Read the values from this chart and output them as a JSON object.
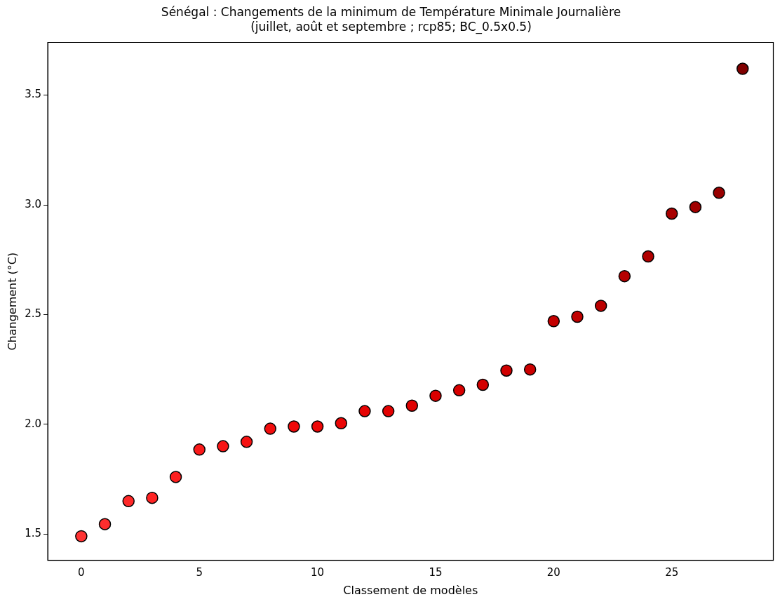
{
  "chart_data": {
    "type": "scatter",
    "title": [
      "Sénégal : Changements de la minimum de Température Minimale Journalière",
      "(juillet, août et septembre ; rcp85; BC_0.5x0.5)"
    ],
    "xlabel": "Classement de modèles",
    "ylabel": "Changement (°C)",
    "x": [
      0,
      1,
      2,
      3,
      4,
      5,
      6,
      7,
      8,
      9,
      10,
      11,
      12,
      13,
      14,
      15,
      16,
      17,
      18,
      19,
      20,
      21,
      22,
      23,
      24,
      25,
      26,
      27,
      28
    ],
    "values": [
      1.49,
      1.545,
      1.65,
      1.665,
      1.76,
      1.885,
      1.9,
      1.92,
      1.98,
      1.99,
      1.99,
      2.005,
      2.06,
      2.06,
      2.085,
      2.13,
      2.155,
      2.18,
      2.245,
      2.25,
      2.47,
      2.49,
      2.54,
      2.675,
      2.765,
      2.96,
      2.99,
      3.055,
      3.62
    ],
    "colors": [
      "#ff3333",
      "#ff2e2e",
      "#ff2929",
      "#ff2424",
      "#fc1f1f",
      "#fa1a1a",
      "#f71616",
      "#f51212",
      "#f20e0e",
      "#f00a0a",
      "#ed0707",
      "#ea0505",
      "#e60303",
      "#e30202",
      "#e00101",
      "#dc0000",
      "#d80000",
      "#d40000",
      "#d00000",
      "#cc0000",
      "#c40000",
      "#c00000",
      "#bb0000",
      "#b50000",
      "#b00000",
      "#a80000",
      "#a00000",
      "#980000",
      "#800000"
    ],
    "xlim": [
      -1.42,
      29.3
    ],
    "ylim": [
      1.38,
      3.74
    ],
    "xticks": [
      0,
      5,
      10,
      15,
      20,
      25
    ],
    "yticks": [
      1.5,
      {
        "value": 2,
        "label": "2.0"
      },
      2.5,
      {
        "value": 3,
        "label": "3.0"
      },
      3.5
    ],
    "marker": "circle",
    "grid": false
  }
}
